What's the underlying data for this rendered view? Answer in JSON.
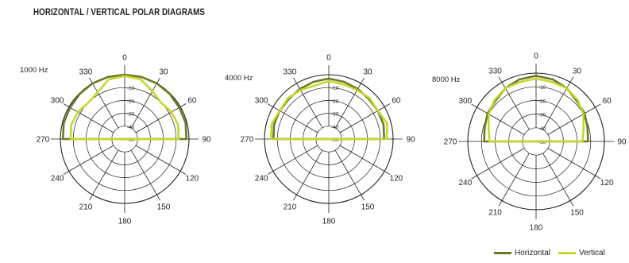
{
  "title": "HORIZONTAL / VERTICAL POLAR DIAGRAMS",
  "colors": {
    "horizontal": "#6b7a26",
    "vertical": "#c8d62b",
    "grid": "#231f20"
  },
  "legend": {
    "horizontal": "Horizontal",
    "vertical": "Vertical"
  },
  "chart_data": [
    {
      "type": "polar",
      "title": "1000 Hz",
      "angle_labels": [
        "0",
        "30",
        "60",
        "90",
        "120",
        "150",
        "180",
        "210",
        "240",
        "270",
        "300",
        "330"
      ],
      "radial_labels": [
        "-10",
        "-20",
        "-30",
        "-40",
        "-50"
      ],
      "rlim": [
        -50,
        0
      ],
      "series": [
        {
          "name": "Horizontal",
          "angles": [
            270,
            285,
            300,
            315,
            330,
            345,
            0,
            15,
            30,
            45,
            60,
            75,
            90
          ],
          "values": [
            -2,
            -1,
            -1,
            -0.5,
            0,
            0,
            0,
            0,
            0,
            -0.5,
            -1,
            -1,
            -2
          ]
        },
        {
          "name": "Vertical",
          "angles": [
            270,
            285,
            300,
            315,
            330,
            345,
            0,
            15,
            30,
            45,
            60,
            75,
            90
          ],
          "values": [
            -8,
            -7,
            -8,
            -10,
            -8,
            -2,
            -1,
            -2,
            -7,
            -10,
            -8,
            -7,
            -8
          ]
        }
      ]
    },
    {
      "type": "polar",
      "title": "4000 Hz",
      "angle_labels": [
        "0",
        "30",
        "60",
        "90",
        "120",
        "150",
        "180",
        "210",
        "240",
        "270",
        "300",
        "330"
      ],
      "radial_labels": [
        "-10",
        "-20",
        "-30",
        "-40",
        "-50"
      ],
      "rlim": [
        -50,
        0
      ],
      "series": [
        {
          "name": "Horizontal",
          "angles": [
            270,
            285,
            300,
            315,
            330,
            345,
            0,
            15,
            30,
            45,
            60,
            75,
            90
          ],
          "values": [
            -7,
            -6,
            -6,
            -6,
            -5,
            -4,
            -3,
            -4,
            -5,
            -6,
            -6,
            -6,
            -7
          ]
        },
        {
          "name": "Vertical",
          "angles": [
            270,
            285,
            300,
            315,
            330,
            345,
            0,
            15,
            30,
            45,
            60,
            75,
            90
          ],
          "values": [
            -5,
            -4,
            -6,
            -5,
            -6,
            -7,
            -5,
            -6,
            -6,
            -5,
            -6,
            -3,
            -5
          ]
        }
      ]
    },
    {
      "type": "polar",
      "title": "8000 Hz",
      "angle_labels": [
        "0",
        "30",
        "60",
        "90",
        "120",
        "150",
        "180",
        "210",
        "240",
        "270",
        "300",
        "330"
      ],
      "radial_labels": [
        "-10",
        "-20",
        "-30",
        "-40",
        "-50"
      ],
      "rlim": [
        -50,
        0
      ],
      "series": [
        {
          "name": "Horizontal",
          "angles": [
            270,
            285,
            300,
            315,
            330,
            345,
            0,
            15,
            30,
            45,
            60,
            75,
            90
          ],
          "values": [
            -12,
            -11,
            -9,
            -8,
            -5,
            -3,
            -2,
            -3,
            -5,
            -8,
            -9,
            -11,
            -12
          ]
        },
        {
          "name": "Vertical",
          "angles": [
            270,
            285,
            300,
            315,
            330,
            345,
            0,
            15,
            30,
            45,
            60,
            75,
            90
          ],
          "values": [
            -16,
            -14,
            -10,
            -7,
            -5,
            -5,
            -4,
            -5,
            -5,
            -7,
            -10,
            -14,
            -16
          ]
        }
      ]
    }
  ]
}
